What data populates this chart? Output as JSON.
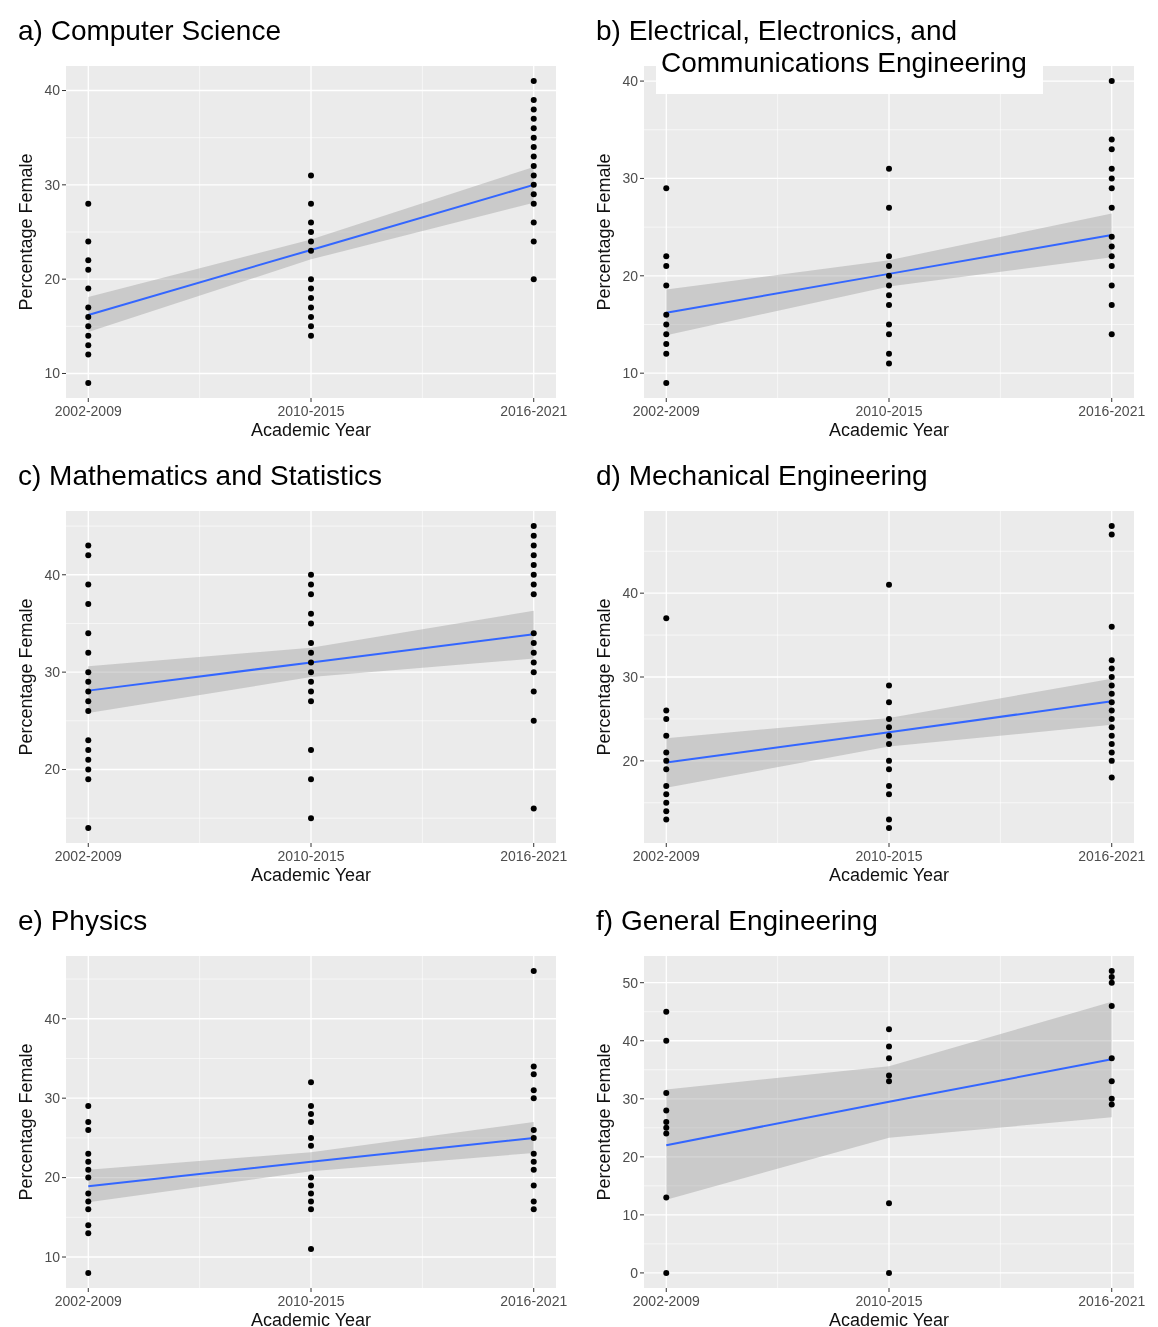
{
  "chart_data": [
    {
      "type": "scatter",
      "title": "a) Computer Science",
      "xlabel": "Academic Year",
      "ylabel": "Percentage Female",
      "categories": [
        "2002-2009",
        "2010-2015",
        "2016-2021"
      ],
      "ylim": [
        7.4,
        42.6
      ],
      "yticks": [
        10,
        20,
        30,
        40
      ],
      "grid": true,
      "series": [
        {
          "marker": "circle",
          "color": "#000000",
          "x": [
            "2002-2009",
            "2002-2009",
            "2002-2009",
            "2002-2009",
            "2002-2009",
            "2002-2009",
            "2002-2009",
            "2002-2009",
            "2002-2009",
            "2002-2009",
            "2002-2009",
            "2002-2009",
            "2010-2015",
            "2010-2015",
            "2010-2015",
            "2010-2015",
            "2010-2015",
            "2010-2015",
            "2010-2015",
            "2010-2015",
            "2010-2015",
            "2010-2015",
            "2010-2015",
            "2010-2015",
            "2010-2015",
            "2016-2021",
            "2016-2021",
            "2016-2021",
            "2016-2021",
            "2016-2021",
            "2016-2021",
            "2016-2021",
            "2016-2021",
            "2016-2021",
            "2016-2021",
            "2016-2021",
            "2016-2021",
            "2016-2021",
            "2016-2021",
            "2016-2021",
            "2016-2021"
          ],
          "values": [
            28,
            24,
            22,
            21,
            19,
            17,
            16,
            15,
            14,
            13,
            12,
            9,
            31,
            28,
            26,
            25,
            24,
            23,
            20,
            19,
            18,
            17,
            16,
            15,
            14,
            41,
            39,
            38,
            37,
            36,
            35,
            34,
            33,
            32,
            31,
            30,
            29,
            28,
            26,
            24,
            20
          ]
        },
        {
          "type": "line",
          "color": "#3366ff",
          "values": [
            16.2,
            23.1,
            30.0
          ],
          "lower": [
            14.4,
            22.1,
            28.1
          ],
          "upper": [
            18.1,
            24.2,
            31.9
          ]
        }
      ]
    },
    {
      "type": "scatter",
      "title": "b) Electrical, Electronics, and Communications Engineering",
      "xlabel": "Academic Year",
      "ylabel": "Percentage Female",
      "categories": [
        "2002-2009",
        "2010-2015",
        "2016-2021"
      ],
      "ylim": [
        7.45,
        41.55
      ],
      "yticks": [
        10,
        20,
        30,
        40
      ],
      "grid": true,
      "series": [
        {
          "marker": "circle",
          "color": "#000000",
          "x": [
            "2002-2009",
            "2002-2009",
            "2002-2009",
            "2002-2009",
            "2002-2009",
            "2002-2009",
            "2002-2009",
            "2002-2009",
            "2002-2009",
            "2002-2009",
            "2010-2015",
            "2010-2015",
            "2010-2015",
            "2010-2015",
            "2010-2015",
            "2010-2015",
            "2010-2015",
            "2010-2015",
            "2010-2015",
            "2010-2015",
            "2010-2015",
            "2010-2015",
            "2016-2021",
            "2016-2021",
            "2016-2021",
            "2016-2021",
            "2016-2021",
            "2016-2021",
            "2016-2021",
            "2016-2021",
            "2016-2021",
            "2016-2021",
            "2016-2021",
            "2016-2021",
            "2016-2021",
            "2016-2021"
          ],
          "values": [
            29,
            22,
            21,
            19,
            16,
            15,
            14,
            13,
            12,
            9,
            31,
            27,
            22,
            21,
            20,
            19,
            18,
            17,
            15,
            14,
            12,
            11,
            40,
            34,
            33,
            31,
            30,
            29,
            27,
            24,
            23,
            22,
            21,
            19,
            17,
            14
          ]
        },
        {
          "type": "line",
          "color": "#3366ff",
          "values": [
            16.2,
            20.2,
            24.2
          ],
          "lower": [
            13.9,
            18.9,
            21.9
          ],
          "upper": [
            18.6,
            21.6,
            26.4
          ]
        }
      ]
    },
    {
      "type": "scatter",
      "title": "c) Mathematics and Statistics",
      "xlabel": "Academic Year",
      "ylabel": "Percentage Female",
      "categories": [
        "2002-2009",
        "2010-2015",
        "2016-2021"
      ],
      "ylim": [
        12.45,
        46.55
      ],
      "yticks": [
        20,
        30,
        40
      ],
      "grid": true,
      "series": [
        {
          "marker": "circle",
          "color": "#000000",
          "x": [
            "2002-2009",
            "2002-2009",
            "2002-2009",
            "2002-2009",
            "2002-2009",
            "2002-2009",
            "2002-2009",
            "2002-2009",
            "2002-2009",
            "2002-2009",
            "2002-2009",
            "2002-2009",
            "2002-2009",
            "2002-2009",
            "2002-2009",
            "2002-2009",
            "2002-2009",
            "2010-2015",
            "2010-2015",
            "2010-2015",
            "2010-2015",
            "2010-2015",
            "2010-2015",
            "2010-2015",
            "2010-2015",
            "2010-2015",
            "2010-2015",
            "2010-2015",
            "2010-2015",
            "2010-2015",
            "2010-2015",
            "2010-2015",
            "2016-2021",
            "2016-2021",
            "2016-2021",
            "2016-2021",
            "2016-2021",
            "2016-2021",
            "2016-2021",
            "2016-2021",
            "2016-2021",
            "2016-2021",
            "2016-2021",
            "2016-2021",
            "2016-2021",
            "2016-2021",
            "2016-2021",
            "2016-2021"
          ],
          "values": [
            43,
            42,
            39,
            37,
            34,
            32,
            30,
            29,
            28,
            27,
            26,
            23,
            22,
            21,
            20,
            19,
            14,
            40,
            39,
            38,
            36,
            35,
            33,
            32,
            31,
            30,
            29,
            28,
            27,
            22,
            19,
            15,
            45,
            44,
            43,
            42,
            41,
            40,
            39,
            38,
            34,
            33,
            32,
            31,
            30,
            28,
            25,
            16
          ]
        },
        {
          "type": "line",
          "color": "#3366ff",
          "values": [
            28.1,
            31.0,
            33.9
          ],
          "lower": [
            25.8,
            29.5,
            31.4
          ],
          "upper": [
            30.6,
            32.5,
            36.3
          ]
        }
      ]
    },
    {
      "type": "scatter",
      "title": "d) Mechanical Engineering",
      "xlabel": "Academic Year",
      "ylabel": "Percentage Female",
      "categories": [
        "2002-2009",
        "2010-2015",
        "2016-2021"
      ],
      "ylim": [
        10.2,
        49.8
      ],
      "yticks": [
        20,
        30,
        40
      ],
      "grid": true,
      "series": [
        {
          "marker": "circle",
          "color": "#000000",
          "x": [
            "2002-2009",
            "2002-2009",
            "2002-2009",
            "2002-2009",
            "2002-2009",
            "2002-2009",
            "2002-2009",
            "2002-2009",
            "2002-2009",
            "2002-2009",
            "2002-2009",
            "2002-2009",
            "2010-2015",
            "2010-2015",
            "2010-2015",
            "2010-2015",
            "2010-2015",
            "2010-2015",
            "2010-2015",
            "2010-2015",
            "2010-2015",
            "2010-2015",
            "2010-2015",
            "2010-2015",
            "2010-2015",
            "2016-2021",
            "2016-2021",
            "2016-2021",
            "2016-2021",
            "2016-2021",
            "2016-2021",
            "2016-2021",
            "2016-2021",
            "2016-2021",
            "2016-2021",
            "2016-2021",
            "2016-2021",
            "2016-2021",
            "2016-2021",
            "2016-2021",
            "2016-2021",
            "2016-2021"
          ],
          "values": [
            37,
            26,
            25,
            23,
            21,
            20,
            19,
            17,
            16,
            15,
            14,
            13,
            41,
            29,
            27,
            25,
            24,
            23,
            22,
            20,
            19,
            17,
            16,
            13,
            12,
            48,
            47,
            36,
            32,
            31,
            30,
            29,
            28,
            27,
            26,
            25,
            24,
            23,
            22,
            21,
            20,
            18
          ]
        },
        {
          "type": "line",
          "color": "#3366ff",
          "values": [
            19.8,
            23.4,
            27.1
          ],
          "lower": [
            16.8,
            21.7,
            24.3
          ],
          "upper": [
            22.7,
            25.1,
            29.8
          ]
        }
      ]
    },
    {
      "type": "scatter",
      "title": "e) Physics",
      "xlabel": "Academic Year",
      "ylabel": "Percentage Female",
      "categories": [
        "2002-2009",
        "2010-2015",
        "2016-2021"
      ],
      "ylim": [
        6.1,
        47.9
      ],
      "yticks": [
        10,
        20,
        30,
        40
      ],
      "grid": true,
      "series": [
        {
          "marker": "circle",
          "color": "#000000",
          "x": [
            "2002-2009",
            "2002-2009",
            "2002-2009",
            "2002-2009",
            "2002-2009",
            "2002-2009",
            "2002-2009",
            "2002-2009",
            "2002-2009",
            "2002-2009",
            "2002-2009",
            "2002-2009",
            "2002-2009",
            "2010-2015",
            "2010-2015",
            "2010-2015",
            "2010-2015",
            "2010-2015",
            "2010-2015",
            "2010-2015",
            "2010-2015",
            "2010-2015",
            "2010-2015",
            "2010-2015",
            "2010-2015",
            "2016-2021",
            "2016-2021",
            "2016-2021",
            "2016-2021",
            "2016-2021",
            "2016-2021",
            "2016-2021",
            "2016-2021",
            "2016-2021",
            "2016-2021",
            "2016-2021",
            "2016-2021",
            "2016-2021"
          ],
          "values": [
            29,
            27,
            26,
            23,
            22,
            21,
            20,
            18,
            17,
            16,
            14,
            13,
            8,
            32,
            29,
            28,
            27,
            25,
            24,
            20,
            19,
            18,
            17,
            16,
            11,
            46,
            34,
            33,
            31,
            30,
            26,
            25,
            23,
            22,
            21,
            19,
            17,
            16
          ]
        },
        {
          "type": "line",
          "color": "#3366ff",
          "values": [
            18.9,
            22.0,
            25.0
          ],
          "lower": [
            16.9,
            20.8,
            23.1
          ],
          "upper": [
            21.0,
            23.2,
            27.0
          ]
        }
      ]
    },
    {
      "type": "scatter",
      "title": "f) General Engineering",
      "xlabel": "Academic Year",
      "ylabel": "Percentage Female",
      "categories": [
        "2002-2009",
        "2010-2015",
        "2016-2021"
      ],
      "ylim": [
        -2.6,
        54.6
      ],
      "yticks": [
        0,
        10,
        20,
        30,
        40,
        50
      ],
      "grid": true,
      "series": [
        {
          "marker": "circle",
          "color": "#000000",
          "x": [
            "2002-2009",
            "2002-2009",
            "2002-2009",
            "2002-2009",
            "2002-2009",
            "2002-2009",
            "2002-2009",
            "2002-2009",
            "2002-2009",
            "2010-2015",
            "2010-2015",
            "2010-2015",
            "2010-2015",
            "2010-2015",
            "2010-2015",
            "2010-2015",
            "2016-2021",
            "2016-2021",
            "2016-2021",
            "2016-2021",
            "2016-2021",
            "2016-2021",
            "2016-2021",
            "2016-2021"
          ],
          "values": [
            45,
            40,
            31,
            28,
            26,
            25,
            24,
            13,
            0,
            42,
            39,
            37,
            34,
            33,
            12,
            0,
            52,
            51,
            50,
            46,
            37,
            33,
            30,
            29
          ]
        },
        {
          "type": "line",
          "color": "#3366ff",
          "values": [
            22.0,
            29.5,
            36.8
          ],
          "lower": [
            12.6,
            23.3,
            26.8
          ],
          "upper": [
            31.6,
            35.6,
            46.7
          ]
        }
      ]
    }
  ]
}
